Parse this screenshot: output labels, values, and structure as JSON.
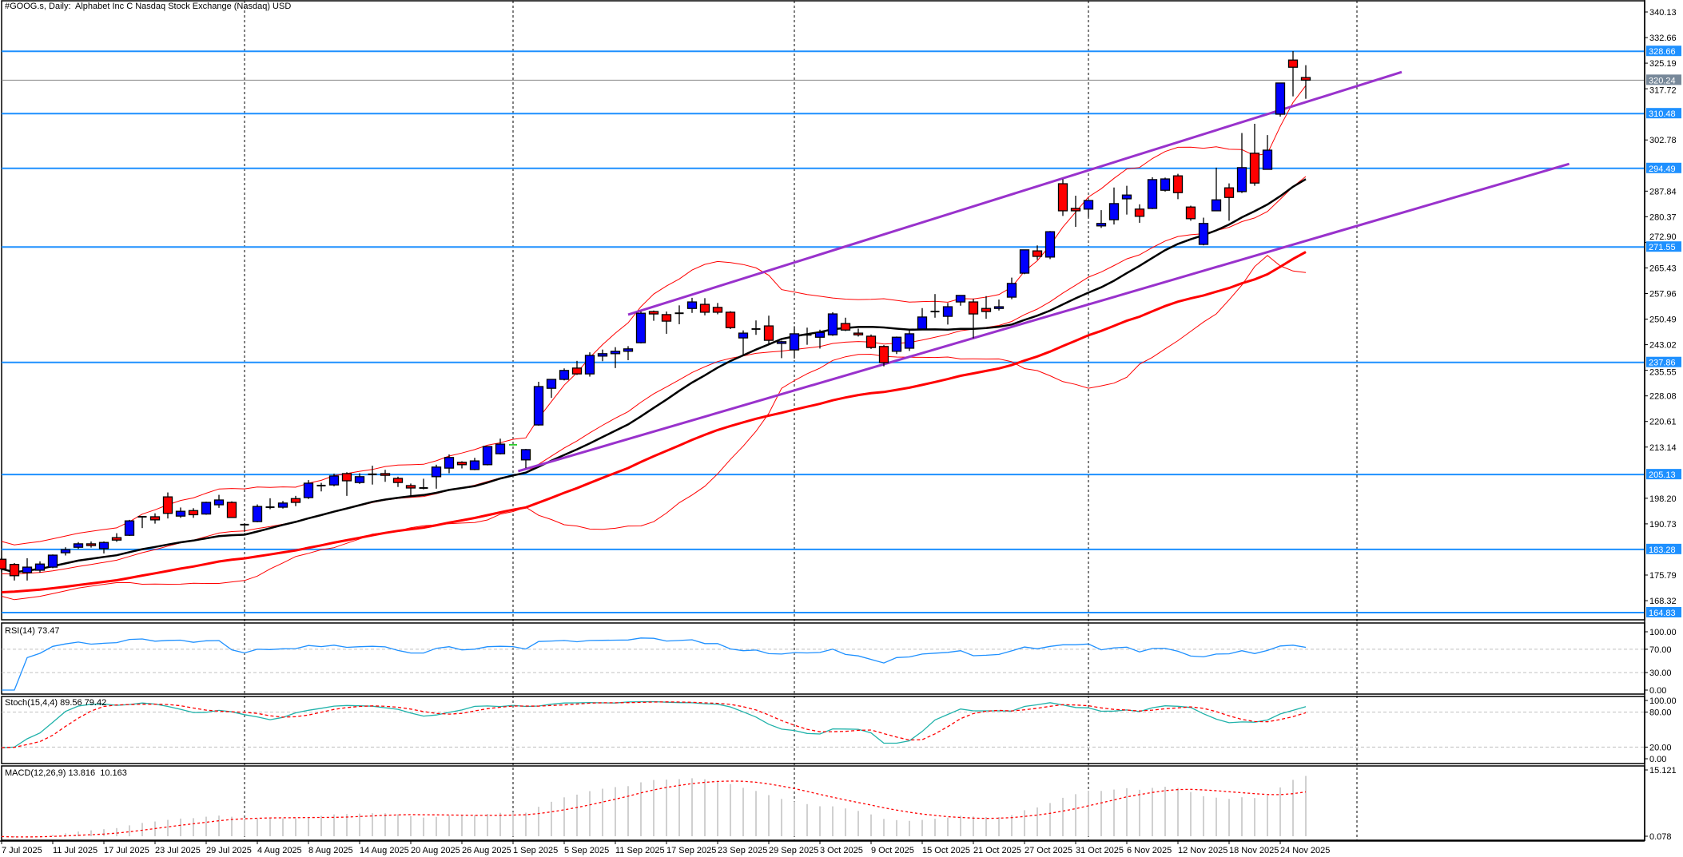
{
  "header": {
    "title": "#GOOG.s, Daily:  Alphabet Inc C Nasdaq Stock Exchange (Nasdaq) USD"
  },
  "indicators": {
    "rsi_label": "RSI(14) 73.47",
    "stoch_label": "Stoch(15,4,4) 89.56 79.42",
    "macd_label": "MACD(12,26,9) 13.816  10.163"
  },
  "colors": {
    "bull": "#0000ff",
    "bear": "#ff0000",
    "level": "#1e90ff",
    "last_price": "#778899",
    "trendline": "#9932cc",
    "ma_middle": "#000000",
    "ma_slow": "#ff0000",
    "bands": "#ff0000",
    "rsi": "#1e90ff",
    "stoch_k": "#20b2aa",
    "stoch_d": "#ff0000",
    "macd_hist": "#c0c0c0",
    "macd_signal": "#ff0000"
  },
  "chart_data": {
    "type": "candlestick",
    "title": "#GOOG.s, Daily",
    "ylim": [
      164.83,
      340.13
    ],
    "price_ticks": [
      "340.13",
      "332.66",
      "325.19",
      "317.72",
      "302.78",
      "287.84",
      "280.37",
      "272.90",
      "265.43",
      "257.96",
      "250.49",
      "243.02",
      "235.55",
      "228.08",
      "220.61",
      "213.14",
      "198.20",
      "190.73",
      "175.79",
      "168.32"
    ],
    "levels": [
      {
        "value": 328.66,
        "label": "328.66",
        "kind": "level"
      },
      {
        "value": 320.24,
        "label": "320.24",
        "kind": "last_price"
      },
      {
        "value": 310.48,
        "label": "310.48",
        "kind": "level"
      },
      {
        "value": 294.49,
        "label": "294.49",
        "kind": "level"
      },
      {
        "value": 271.55,
        "label": "271.55",
        "kind": "level"
      },
      {
        "value": 237.86,
        "label": "237.86",
        "kind": "level"
      },
      {
        "value": 205.13,
        "label": "205.13",
        "kind": "level"
      },
      {
        "value": 183.28,
        "label": "183.28",
        "kind": "level"
      },
      {
        "value": 164.83,
        "label": "164.83",
        "kind": "level"
      }
    ],
    "trendlines": [
      {
        "name": "upper-channel",
        "from": [
          49,
          251.8
        ],
        "to": [
          109.5,
          322.6
        ]
      },
      {
        "name": "lower-channel",
        "from": [
          40.4,
          206.1
        ],
        "to": [
          122.6,
          295.8
        ]
      }
    ],
    "month_separators": [
      19,
      40,
      62,
      85,
      106
    ],
    "date_labels": [
      "7 Jul 2025",
      "11 Jul 2025",
      "17 Jul 2025",
      "23 Jul 2025",
      "29 Jul 2025",
      "4 Aug 2025",
      "8 Aug 2025",
      "14 Aug 2025",
      "20 Aug 2025",
      "26 Aug 2025",
      "1 Sep 2025",
      "5 Sep 2025",
      "11 Sep 2025",
      "17 Sep 2025",
      "23 Sep 2025",
      "29 Sep 2025",
      "3 Oct 2025",
      "9 Oct 2025",
      "15 Oct 2025",
      "21 Oct 2025",
      "27 Oct 2025",
      "31 Oct 2025",
      "6 Nov 2025",
      "12 Nov 2025",
      "18 Nov 2025",
      "24 Nov 2025"
    ],
    "date_label_every": 4,
    "ohlc": [
      [
        180.4,
        181.0,
        176.8,
        177.6
      ],
      [
        178.9,
        179.3,
        174.2,
        175.6
      ],
      [
        176.5,
        180.7,
        174.2,
        178.1
      ],
      [
        177.2,
        179.8,
        176.5,
        179.0
      ],
      [
        178.1,
        181.8,
        177.8,
        181.6
      ],
      [
        182.3,
        183.9,
        181.5,
        183.2
      ],
      [
        183.9,
        185.4,
        183.4,
        184.9
      ],
      [
        184.9,
        185.6,
        183.8,
        184.4
      ],
      [
        183.5,
        185.6,
        182.1,
        185.3
      ],
      [
        186.7,
        188.0,
        185.5,
        186.0
      ],
      [
        187.4,
        191.9,
        187.2,
        191.6
      ],
      [
        192.6,
        192.9,
        189.5,
        192.8
      ],
      [
        192.8,
        193.8,
        190.8,
        191.9
      ],
      [
        198.6,
        199.9,
        192.3,
        193.8
      ],
      [
        193.0,
        195.5,
        192.5,
        194.4
      ],
      [
        194.6,
        195.3,
        192.5,
        193.4
      ],
      [
        193.6,
        197.2,
        193.4,
        197.0
      ],
      [
        196.3,
        199.2,
        195.4,
        197.7
      ],
      [
        197.0,
        197.3,
        192.5,
        192.6
      ],
      [
        190.3,
        190.9,
        188.4,
        190.5
      ],
      [
        191.4,
        196.4,
        191.2,
        195.8
      ],
      [
        195.5,
        198.2,
        195.0,
        195.6
      ],
      [
        195.6,
        197.4,
        195.2,
        196.8
      ],
      [
        198.1,
        198.9,
        195.9,
        197.0
      ],
      [
        198.4,
        203.5,
        198.0,
        202.6
      ],
      [
        201.8,
        202.7,
        200.2,
        201.9
      ],
      [
        202.1,
        205.4,
        201.7,
        204.7
      ],
      [
        205.4,
        205.8,
        198.9,
        203.3
      ],
      [
        202.8,
        205.5,
        202.4,
        204.5
      ],
      [
        205.1,
        207.7,
        202.2,
        205.2
      ],
      [
        205.4,
        206.5,
        203.0,
        204.9
      ],
      [
        204.0,
        204.5,
        201.5,
        202.8
      ],
      [
        201.9,
        202.5,
        199.0,
        201.2
      ],
      [
        201.1,
        203.9,
        200.8,
        201.2
      ],
      [
        204.5,
        208.0,
        201.0,
        207.3
      ],
      [
        207.0,
        211.0,
        205.5,
        210.1
      ],
      [
        208.7,
        209.0,
        206.9,
        208.0
      ],
      [
        206.6,
        210.0,
        206.4,
        209.1
      ],
      [
        208.0,
        213.4,
        207.8,
        213.3
      ],
      [
        211.2,
        215.6,
        211.0,
        214.0
      ],
      [
        213.8,
        213.8,
        213.8,
        213.8
      ],
      [
        209.4,
        212.6,
        207.0,
        212.4
      ],
      [
        219.6,
        232.2,
        219.4,
        230.8
      ],
      [
        230.3,
        233.0,
        227.5,
        232.9
      ],
      [
        232.9,
        236.1,
        232.6,
        235.5
      ],
      [
        236.2,
        238.3,
        234.2,
        234.5
      ],
      [
        234.5,
        240.8,
        233.7,
        239.9
      ],
      [
        239.7,
        241.6,
        238.2,
        240.4
      ],
      [
        240.4,
        242.3,
        236.2,
        241.1
      ],
      [
        241.1,
        242.6,
        238.5,
        241.8
      ],
      [
        243.6,
        252.7,
        243.4,
        252.2
      ],
      [
        252.7,
        253.0,
        250.0,
        252.0
      ],
      [
        251.8,
        252.7,
        246.2,
        249.9
      ],
      [
        252.0,
        254.5,
        249.0,
        252.2
      ],
      [
        253.6,
        256.7,
        252.3,
        255.5
      ],
      [
        254.8,
        256.6,
        251.6,
        252.5
      ],
      [
        253.9,
        255.2,
        251.9,
        252.5
      ],
      [
        252.5,
        252.8,
        247.6,
        248.0
      ],
      [
        245.0,
        247.2,
        240.1,
        246.4
      ],
      [
        247.6,
        250.1,
        245.9,
        247.6
      ],
      [
        248.5,
        251.5,
        243.4,
        244.3
      ],
      [
        243.4,
        244.2,
        239.1,
        243.9
      ],
      [
        241.5,
        248.4,
        239.0,
        246.2
      ],
      [
        245.9,
        248.0,
        243.0,
        245.9
      ],
      [
        245.2,
        247.4,
        241.9,
        246.6
      ],
      [
        245.9,
        252.5,
        245.6,
        252.0
      ],
      [
        249.2,
        250.9,
        247.0,
        247.3
      ],
      [
        246.4,
        247.7,
        245.4,
        245.9
      ],
      [
        245.5,
        246.0,
        241.8,
        242.2
      ],
      [
        242.5,
        242.9,
        236.7,
        237.8
      ],
      [
        241.1,
        245.4,
        240.3,
        245.2
      ],
      [
        242.0,
        247.6,
        241.2,
        246.2
      ],
      [
        247.6,
        253.7,
        247.3,
        251.1
      ],
      [
        252.6,
        257.8,
        250.9,
        252.7
      ],
      [
        251.3,
        255.2,
        248.9,
        254.1
      ],
      [
        255.5,
        257.4,
        254.4,
        257.4
      ],
      [
        255.5,
        256.4,
        244.9,
        252.0
      ],
      [
        253.6,
        257.2,
        250.6,
        252.7
      ],
      [
        253.6,
        256.2,
        253.0,
        254.1
      ],
      [
        256.9,
        262.6,
        256.3,
        260.9
      ],
      [
        263.9,
        270.7,
        263.6,
        270.7
      ],
      [
        270.4,
        272.0,
        267.8,
        268.8
      ],
      [
        268.6,
        276.2,
        268.0,
        276.0
      ],
      [
        290.0,
        291.3,
        280.6,
        282.1
      ],
      [
        282.8,
        286.5,
        277.4,
        282.1
      ],
      [
        282.6,
        285.3,
        280.1,
        285.1
      ],
      [
        277.7,
        282.3,
        277.1,
        278.4
      ],
      [
        279.5,
        288.9,
        278.1,
        284.2
      ],
      [
        285.6,
        289.4,
        281.0,
        286.7
      ],
      [
        282.6,
        284.0,
        278.6,
        280.5
      ],
      [
        282.8,
        291.9,
        282.6,
        291.2
      ],
      [
        288.1,
        291.8,
        287.7,
        291.4
      ],
      [
        292.3,
        292.9,
        285.5,
        287.4
      ],
      [
        283.2,
        283.6,
        279.2,
        279.8
      ],
      [
        272.3,
        280.1,
        272.0,
        278.4
      ],
      [
        282.1,
        294.7,
        282.0,
        285.3
      ],
      [
        288.8,
        290.1,
        279.2,
        286.0
      ],
      [
        287.7,
        304.8,
        287.3,
        294.7
      ],
      [
        298.9,
        307.5,
        289.4,
        290.2
      ],
      [
        294.2,
        304.2,
        294.1,
        299.8
      ],
      [
        310.3,
        319.4,
        309.6,
        319.4
      ],
      [
        326.1,
        328.7,
        315.5,
        324.0
      ],
      [
        321.0,
        324.6,
        314.8,
        320.24
      ]
    ],
    "ma_settings": {
      "middle_sma": 20,
      "fast_ema": 20,
      "slow_ema": 50,
      "slow_ema_seed": 170.5,
      "bands_deviation": 2
    },
    "rsi": {
      "period": 14,
      "levels": [
        70,
        30
      ],
      "ylim": [
        0,
        100
      ],
      "ticks": [
        "100.00",
        "70.00",
        "30.00",
        "0.00"
      ]
    },
    "stoch": {
      "k": 15,
      "d": 4,
      "slowing": 4,
      "levels": [
        80,
        20
      ],
      "ylim": [
        0,
        100
      ],
      "ticks": [
        "100.00",
        "80.00",
        "20.00",
        "0.00"
      ]
    },
    "macd": {
      "fast": 12,
      "slow": 26,
      "signal": 9,
      "ylim": [
        0.078,
        15.121
      ],
      "ticks": [
        "15.121",
        "0.078"
      ]
    }
  }
}
